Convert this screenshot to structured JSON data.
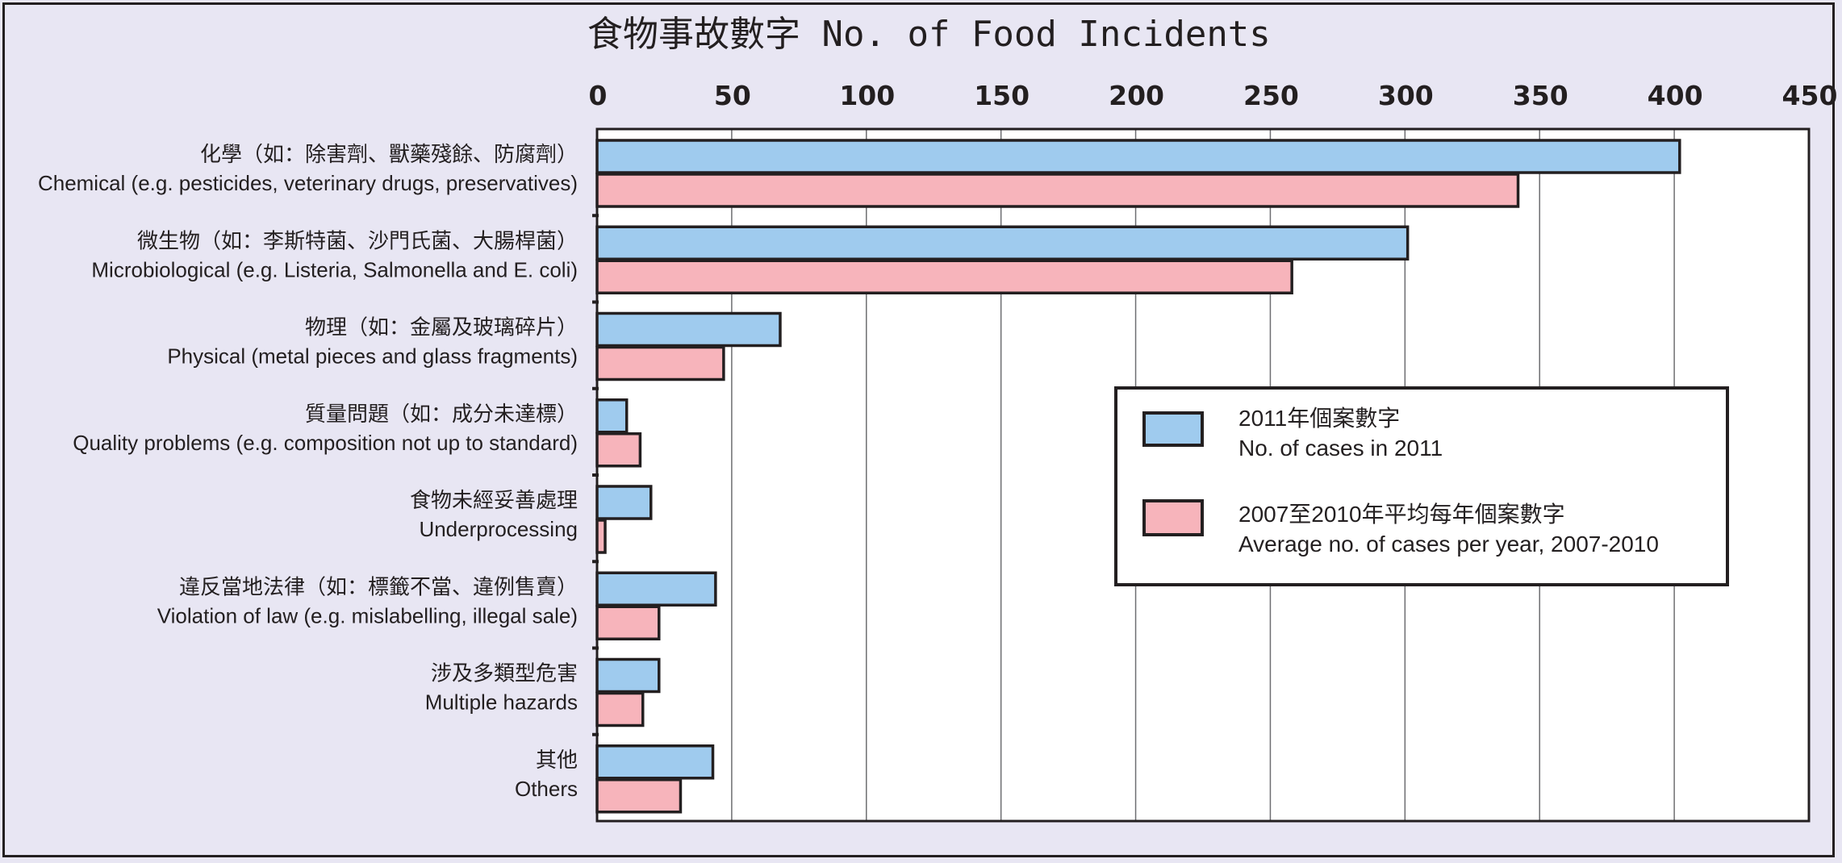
{
  "chart_data": {
    "type": "bar",
    "orientation": "horizontal",
    "title": "食物事故數字 No. of Food Incidents",
    "xlim": [
      0,
      450
    ],
    "ticks": [
      0,
      50,
      100,
      150,
      200,
      250,
      300,
      350,
      400,
      450
    ],
    "grid": true,
    "legend_position": "right",
    "categories": [
      {
        "zh": "化學（如：除害劑、獸藥殘餘、防腐劑）",
        "en": "Chemical (e.g. pesticides, veterinary drugs, preservatives)"
      },
      {
        "zh": "微生物（如：李斯特菌、沙門氏菌、大腸桿菌）",
        "en": "Microbiological (e.g. Listeria, Salmonella and E. coli)"
      },
      {
        "zh": "物理（如：金屬及玻璃碎片）",
        "en": "Physical (metal pieces and glass fragments)"
      },
      {
        "zh": "質量問題（如：成分未達標）",
        "en": "Quality problems (e.g. composition not up to standard)"
      },
      {
        "zh": "食物未經妥善處理",
        "en": "Underprocessing"
      },
      {
        "zh": "違反當地法律（如：標籤不當、違例售賣）",
        "en": "Violation of law (e.g. mislabelling, illegal sale)"
      },
      {
        "zh": "涉及多類型危害",
        "en": "Multiple hazards"
      },
      {
        "zh": "其他",
        "en": "Others"
      }
    ],
    "series": [
      {
        "name_zh": "2011年個案數字",
        "name_en": "No. of cases in 2011",
        "color": "#9fcbee",
        "values": [
          402,
          301,
          68,
          11,
          20,
          44,
          23,
          43
        ]
      },
      {
        "name_zh": "2007至2010年平均每年個案數字",
        "name_en": "Average no. of cases per year, 2007-2010",
        "color": "#f7b4bb",
        "values": [
          342,
          258,
          47,
          16,
          3,
          23,
          17,
          31
        ]
      }
    ]
  },
  "colors": {
    "background": "#e8e6f3",
    "plot_background": "#ffffff",
    "outline": "#231f20",
    "grid": "#6d6e71"
  }
}
